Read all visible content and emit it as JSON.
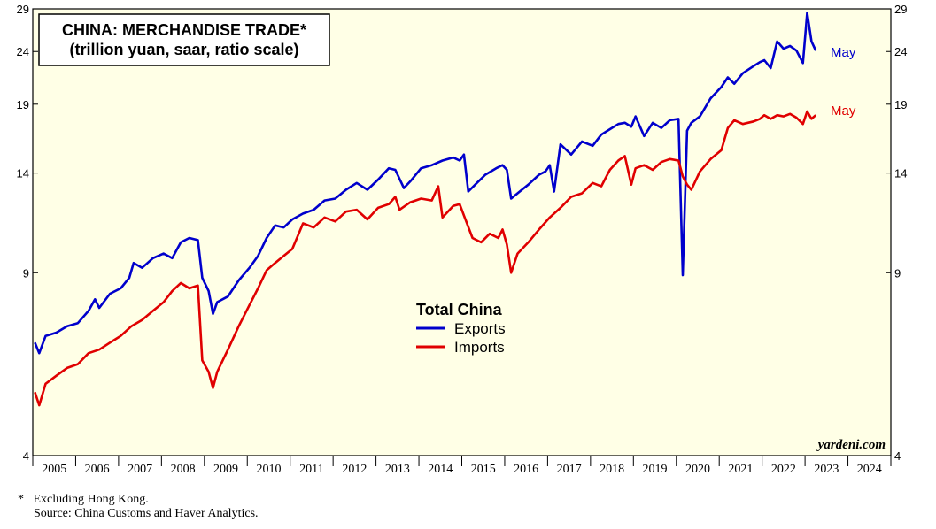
{
  "chart_data": {
    "type": "line",
    "title": "CHINA: MERCHANDISE TRADE*",
    "subtitle": "(trillion yuan, saar, ratio scale)",
    "legend_title": "Total China",
    "y_scale": "log",
    "ylim": [
      4,
      29
    ],
    "yticks": [
      4,
      9,
      14,
      19,
      24,
      29
    ],
    "ytick_labels": [
      "4",
      "9",
      "14",
      "19",
      "24",
      "29"
    ],
    "xlim": [
      2004.95,
      2024.95
    ],
    "xtick_labels": [
      "2005",
      "2006",
      "2007",
      "2008",
      "2009",
      "2010",
      "2011",
      "2012",
      "2013",
      "2014",
      "2015",
      "2016",
      "2017",
      "2018",
      "2019",
      "2020",
      "2021",
      "2022",
      "2023",
      "2024"
    ],
    "series": [
      {
        "name": "Exports",
        "color": "#0000cc",
        "end_label": "May",
        "points": [
          [
            2005.0,
            6.6
          ],
          [
            2005.1,
            6.3
          ],
          [
            2005.25,
            6.8
          ],
          [
            2005.5,
            6.9
          ],
          [
            2005.75,
            7.1
          ],
          [
            2006.0,
            7.2
          ],
          [
            2006.25,
            7.6
          ],
          [
            2006.4,
            8.0
          ],
          [
            2006.5,
            7.7
          ],
          [
            2006.75,
            8.2
          ],
          [
            2007.0,
            8.4
          ],
          [
            2007.2,
            8.8
          ],
          [
            2007.3,
            9.4
          ],
          [
            2007.5,
            9.2
          ],
          [
            2007.75,
            9.6
          ],
          [
            2008.0,
            9.8
          ],
          [
            2008.2,
            9.6
          ],
          [
            2008.4,
            10.3
          ],
          [
            2008.6,
            10.5
          ],
          [
            2008.8,
            10.4
          ],
          [
            2008.9,
            8.8
          ],
          [
            2009.05,
            8.3
          ],
          [
            2009.15,
            7.5
          ],
          [
            2009.25,
            7.9
          ],
          [
            2009.5,
            8.1
          ],
          [
            2009.75,
            8.7
          ],
          [
            2010.0,
            9.2
          ],
          [
            2010.2,
            9.7
          ],
          [
            2010.4,
            10.5
          ],
          [
            2010.6,
            11.1
          ],
          [
            2010.8,
            11.0
          ],
          [
            2011.0,
            11.4
          ],
          [
            2011.25,
            11.7
          ],
          [
            2011.5,
            11.9
          ],
          [
            2011.75,
            12.4
          ],
          [
            2012.0,
            12.5
          ],
          [
            2012.25,
            13.0
          ],
          [
            2012.5,
            13.4
          ],
          [
            2012.75,
            13.0
          ],
          [
            2013.0,
            13.6
          ],
          [
            2013.25,
            14.3
          ],
          [
            2013.4,
            14.2
          ],
          [
            2013.6,
            13.1
          ],
          [
            2013.75,
            13.5
          ],
          [
            2014.0,
            14.3
          ],
          [
            2014.25,
            14.5
          ],
          [
            2014.5,
            14.8
          ],
          [
            2014.75,
            15.0
          ],
          [
            2014.9,
            14.8
          ],
          [
            2015.0,
            15.2
          ],
          [
            2015.1,
            12.9
          ],
          [
            2015.3,
            13.4
          ],
          [
            2015.5,
            13.9
          ],
          [
            2015.75,
            14.3
          ],
          [
            2015.9,
            14.5
          ],
          [
            2016.0,
            14.2
          ],
          [
            2016.1,
            12.5
          ],
          [
            2016.3,
            12.9
          ],
          [
            2016.5,
            13.3
          ],
          [
            2016.75,
            13.9
          ],
          [
            2016.9,
            14.1
          ],
          [
            2017.0,
            14.5
          ],
          [
            2017.1,
            12.9
          ],
          [
            2017.25,
            15.9
          ],
          [
            2017.5,
            15.2
          ],
          [
            2017.75,
            16.1
          ],
          [
            2018.0,
            15.8
          ],
          [
            2018.2,
            16.6
          ],
          [
            2018.4,
            17.0
          ],
          [
            2018.6,
            17.4
          ],
          [
            2018.75,
            17.5
          ],
          [
            2018.9,
            17.2
          ],
          [
            2019.0,
            18.0
          ],
          [
            2019.2,
            16.5
          ],
          [
            2019.4,
            17.5
          ],
          [
            2019.6,
            17.1
          ],
          [
            2019.8,
            17.7
          ],
          [
            2020.0,
            17.8
          ],
          [
            2020.1,
            8.9
          ],
          [
            2020.2,
            16.9
          ],
          [
            2020.3,
            17.5
          ],
          [
            2020.5,
            18.0
          ],
          [
            2020.75,
            19.5
          ],
          [
            2021.0,
            20.5
          ],
          [
            2021.15,
            21.4
          ],
          [
            2021.3,
            20.8
          ],
          [
            2021.5,
            21.8
          ],
          [
            2021.75,
            22.5
          ],
          [
            2021.9,
            22.9
          ],
          [
            2022.0,
            23.1
          ],
          [
            2022.15,
            22.3
          ],
          [
            2022.3,
            25.1
          ],
          [
            2022.45,
            24.3
          ],
          [
            2022.6,
            24.6
          ],
          [
            2022.75,
            24.1
          ],
          [
            2022.9,
            22.8
          ],
          [
            2023.0,
            28.5
          ],
          [
            2023.1,
            25.1
          ],
          [
            2023.2,
            24.1
          ]
        ]
      },
      {
        "name": "Imports",
        "color": "#e00000",
        "end_label": "May",
        "points": [
          [
            2005.0,
            5.3
          ],
          [
            2005.1,
            5.0
          ],
          [
            2005.25,
            5.5
          ],
          [
            2005.5,
            5.7
          ],
          [
            2005.75,
            5.9
          ],
          [
            2006.0,
            6.0
          ],
          [
            2006.25,
            6.3
          ],
          [
            2006.5,
            6.4
          ],
          [
            2006.75,
            6.6
          ],
          [
            2007.0,
            6.8
          ],
          [
            2007.25,
            7.1
          ],
          [
            2007.5,
            7.3
          ],
          [
            2007.75,
            7.6
          ],
          [
            2008.0,
            7.9
          ],
          [
            2008.2,
            8.3
          ],
          [
            2008.4,
            8.6
          ],
          [
            2008.6,
            8.4
          ],
          [
            2008.8,
            8.5
          ],
          [
            2008.9,
            6.1
          ],
          [
            2009.05,
            5.8
          ],
          [
            2009.15,
            5.4
          ],
          [
            2009.25,
            5.8
          ],
          [
            2009.5,
            6.4
          ],
          [
            2009.75,
            7.1
          ],
          [
            2010.0,
            7.8
          ],
          [
            2010.2,
            8.4
          ],
          [
            2010.4,
            9.1
          ],
          [
            2010.6,
            9.4
          ],
          [
            2010.8,
            9.7
          ],
          [
            2011.0,
            10.0
          ],
          [
            2011.25,
            11.2
          ],
          [
            2011.5,
            11.0
          ],
          [
            2011.75,
            11.5
          ],
          [
            2012.0,
            11.3
          ],
          [
            2012.25,
            11.8
          ],
          [
            2012.5,
            11.9
          ],
          [
            2012.75,
            11.4
          ],
          [
            2013.0,
            12.0
          ],
          [
            2013.25,
            12.2
          ],
          [
            2013.4,
            12.6
          ],
          [
            2013.5,
            11.9
          ],
          [
            2013.75,
            12.3
          ],
          [
            2014.0,
            12.5
          ],
          [
            2014.25,
            12.4
          ],
          [
            2014.4,
            13.2
          ],
          [
            2014.5,
            11.5
          ],
          [
            2014.75,
            12.1
          ],
          [
            2014.9,
            12.2
          ],
          [
            2015.0,
            11.6
          ],
          [
            2015.2,
            10.5
          ],
          [
            2015.4,
            10.3
          ],
          [
            2015.6,
            10.7
          ],
          [
            2015.8,
            10.5
          ],
          [
            2015.9,
            10.9
          ],
          [
            2016.0,
            10.2
          ],
          [
            2016.1,
            9.0
          ],
          [
            2016.25,
            9.8
          ],
          [
            2016.5,
            10.3
          ],
          [
            2016.75,
            10.9
          ],
          [
            2017.0,
            11.5
          ],
          [
            2017.25,
            12.0
          ],
          [
            2017.5,
            12.6
          ],
          [
            2017.75,
            12.8
          ],
          [
            2018.0,
            13.4
          ],
          [
            2018.2,
            13.2
          ],
          [
            2018.4,
            14.2
          ],
          [
            2018.6,
            14.8
          ],
          [
            2018.75,
            15.1
          ],
          [
            2018.9,
            13.3
          ],
          [
            2019.0,
            14.3
          ],
          [
            2019.2,
            14.5
          ],
          [
            2019.4,
            14.2
          ],
          [
            2019.6,
            14.7
          ],
          [
            2019.8,
            14.9
          ],
          [
            2020.0,
            14.8
          ],
          [
            2020.1,
            13.8
          ],
          [
            2020.2,
            13.3
          ],
          [
            2020.3,
            13.0
          ],
          [
            2020.5,
            14.1
          ],
          [
            2020.75,
            14.9
          ],
          [
            2021.0,
            15.5
          ],
          [
            2021.15,
            17.1
          ],
          [
            2021.3,
            17.7
          ],
          [
            2021.5,
            17.4
          ],
          [
            2021.75,
            17.6
          ],
          [
            2021.9,
            17.8
          ],
          [
            2022.0,
            18.1
          ],
          [
            2022.15,
            17.8
          ],
          [
            2022.3,
            18.1
          ],
          [
            2022.45,
            18.0
          ],
          [
            2022.6,
            18.2
          ],
          [
            2022.75,
            17.9
          ],
          [
            2022.9,
            17.4
          ],
          [
            2023.0,
            18.4
          ],
          [
            2023.1,
            17.8
          ],
          [
            2023.2,
            18.1
          ]
        ]
      }
    ],
    "watermark": "yardeni.com"
  },
  "footnotes": {
    "note1": "*   Excluding Hong Kong.",
    "note2": "Source: China Customs and Haver Analytics."
  }
}
